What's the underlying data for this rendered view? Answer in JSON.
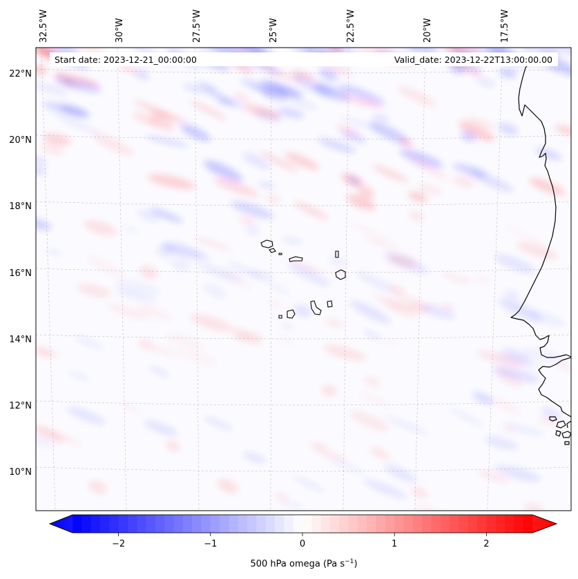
{
  "map": {
    "start_label": "Start date: 2023-12-21_00:00:00",
    "valid_label": "Valid_date: 2023-12-22T13:00:00.00",
    "lon_labels": [
      "32.5°W",
      "30°W",
      "27.5°W",
      "25°W",
      "22.5°W",
      "20°W",
      "17.5°W"
    ],
    "lat_labels": [
      "22°N",
      "20°N",
      "18°N",
      "16°N",
      "14°N",
      "12°N",
      "10°N"
    ],
    "colors": {
      "coast": "#000000",
      "grid": "#b0b0b0",
      "neg": "#0000ff",
      "pos": "#ff0000",
      "mid": "#ffffff"
    }
  },
  "colorbar": {
    "label_main": "500 hPa omega (Pa s",
    "label_exp": "−1",
    "label_tail": ")",
    "min": -2.5,
    "max": 2.5,
    "ticks": [
      {
        "value": -2,
        "label": "−2"
      },
      {
        "value": -1,
        "label": "−1"
      },
      {
        "value": 0,
        "label": "0"
      },
      {
        "value": 1,
        "label": "1"
      },
      {
        "value": 2,
        "label": "2"
      }
    ]
  }
}
